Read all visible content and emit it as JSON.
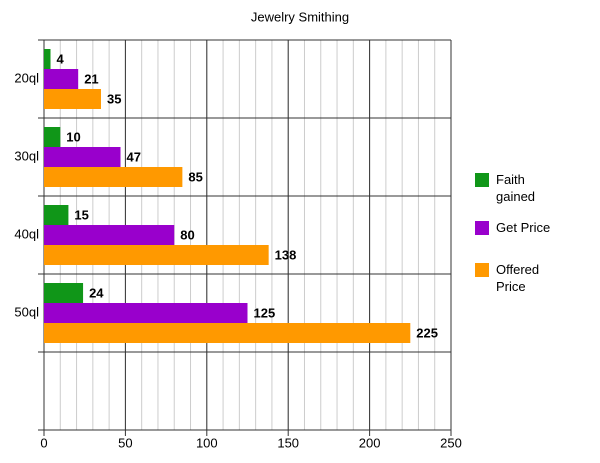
{
  "chart_data": {
    "type": "bar",
    "orientation": "horizontal",
    "title": "Jewelry Smithing",
    "categories": [
      "20ql",
      "30ql",
      "40ql",
      "50ql",
      null
    ],
    "series": [
      {
        "name": "Faith gained",
        "color": "#109618",
        "values": [
          4,
          10,
          15,
          24,
          null
        ]
      },
      {
        "name": "Get Price",
        "color": "#9900cc",
        "values": [
          21,
          47,
          80,
          125,
          null
        ]
      },
      {
        "name": "Offered Price",
        "color": "#ff9900",
        "values": [
          35,
          85,
          138,
          225,
          null
        ]
      }
    ],
    "xlim": [
      0,
      250
    ],
    "xticks": [
      0,
      50,
      100,
      150,
      200,
      250
    ],
    "minor_grid_step": 10,
    "grid": true,
    "legend": "right"
  }
}
